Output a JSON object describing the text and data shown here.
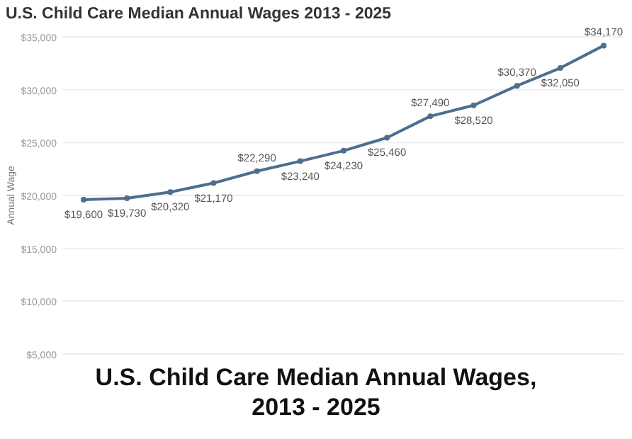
{
  "chart_data": {
    "type": "line",
    "title": "U.S. Child Care Median Annual Wages 2013 - 2025",
    "ylabel": "Annual Wage",
    "annotations": [
      "U.S. Child Care Median Annual Wages, 2013 - 2025"
    ],
    "categories": [
      null,
      null,
      null,
      null,
      null,
      null,
      null,
      null,
      null,
      null,
      null,
      null,
      null
    ],
    "series": [
      {
        "color": "#4e6e8e",
        "values": [
          19600,
          19730,
          20320,
          21170,
          22290,
          23240,
          24230,
          25460,
          27490,
          28520,
          30370,
          32050,
          34170
        ],
        "value_labels": [
          "$19,600",
          "$19,730",
          "$20,320",
          "$21,170",
          "$22,290",
          "$23,240",
          "$24,230",
          "$25,460",
          "$27,490",
          "$28,520",
          "$30,370",
          "$32,050",
          "$34,170"
        ]
      }
    ],
    "ylim": [
      5000,
      35000
    ],
    "yticks": [
      {
        "value": 5000,
        "label": "$5,000"
      },
      {
        "value": 10000,
        "label": "$10,000"
      },
      {
        "value": 15000,
        "label": "$15,000"
      },
      {
        "value": 20000,
        "label": "$20,000"
      },
      {
        "value": 25000,
        "label": "$25,000"
      },
      {
        "value": 30000,
        "label": "$30,000"
      },
      {
        "value": 35000,
        "label": "$35,000"
      }
    ],
    "grid": "y",
    "marker": "circle",
    "line_style": "solid"
  }
}
